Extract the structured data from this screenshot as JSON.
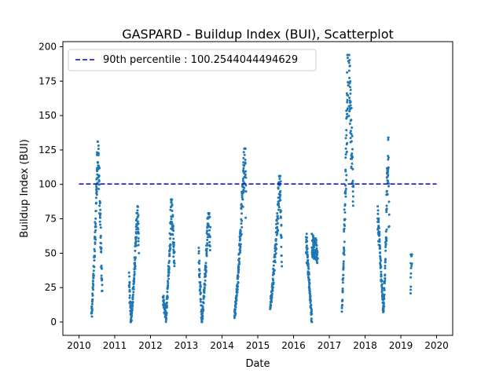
{
  "chart_data": {
    "type": "scatter",
    "title": "GASPARD - Buildup Index (BUI), Scatterplot",
    "xlabel": "Date",
    "ylabel": "Buildup Index (BUI)",
    "xlim": [
      2009.55,
      2020.45
    ],
    "ylim": [
      -9.7,
      203.7
    ],
    "xticks": [
      2010,
      2011,
      2012,
      2013,
      2014,
      2015,
      2016,
      2017,
      2018,
      2019,
      2020
    ],
    "yticks": [
      0,
      25,
      50,
      75,
      100,
      125,
      150,
      175,
      200
    ],
    "grid": false,
    "legend_position": "top-left",
    "threshold": {
      "label": "90th percentile : 100.2544044494629",
      "value": 100.2544044494629,
      "x_range": [
        2010,
        2020
      ],
      "color": "#0000cc",
      "style": "dashed"
    },
    "marker_color": "#1f77b4",
    "seasons": [
      {
        "x_start": 2010.35,
        "x_end": 2010.65,
        "y_start": 5,
        "y_peak": 131,
        "y_end": 22,
        "peak_at": 0.6
      },
      {
        "x_start": 2011.4,
        "x_end": 2011.67,
        "y_start": 33,
        "y_peak": 84,
        "y_end": 55,
        "y_min": 1,
        "min_at": 0.18,
        "peak_at": 0.9
      },
      {
        "x_start": 2012.35,
        "x_end": 2012.67,
        "y_start": 17,
        "y_peak": 89,
        "y_end": 42,
        "y_min": 3,
        "min_at": 0.25,
        "peak_at": 0.75
      },
      {
        "x_start": 2013.35,
        "x_end": 2013.67,
        "y_start": 50,
        "y_peak": 79,
        "y_end": 60,
        "y_min": 1,
        "min_at": 0.25,
        "peak_at": 0.85
      },
      {
        "x_start": 2014.35,
        "x_end": 2014.67,
        "y_start": 5,
        "y_peak": 126,
        "y_end": 90,
        "peak_at": 0.92
      },
      {
        "x_start": 2015.35,
        "x_end": 2015.67,
        "y_start": 12,
        "y_peak": 106,
        "y_end": 48,
        "peak_at": 0.85
      },
      {
        "x_start": 2016.35,
        "x_end": 2016.67,
        "y_start": 60,
        "y_peak": 64,
        "y_end": 50,
        "y_min": 2,
        "min_at": 0.5,
        "peak_at": 0.02
      },
      {
        "x_start": 2017.35,
        "x_end": 2017.67,
        "y_start": 11,
        "y_peak": 194,
        "y_end": 95,
        "peak_at": 0.55
      },
      {
        "x_start": 2018.35,
        "x_end": 2018.67,
        "y_start": 78,
        "y_peak": 134,
        "y_end": 60,
        "y_min": 8,
        "min_at": 0.5,
        "peak_at": 0.95
      },
      {
        "x_start": 2019.27,
        "x_end": 2019.31,
        "y_start": 23,
        "y_peak": 49,
        "y_end": 48,
        "peak_at": 0.4
      }
    ]
  }
}
